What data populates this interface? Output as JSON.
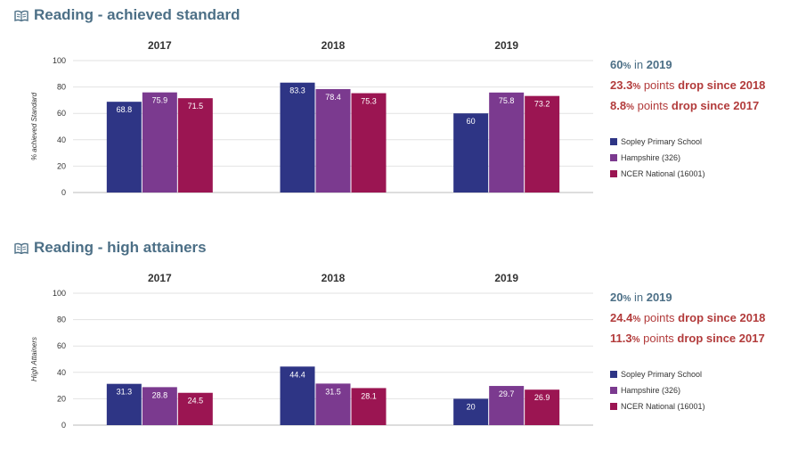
{
  "colors": {
    "title": "#4c6f86",
    "drop": "#b23b3b",
    "series": [
      "#2e3585",
      "#7b3a8f",
      "#9b1552"
    ]
  },
  "legend": [
    {
      "name": "Sopley Primary School",
      "color": "#2e3585"
    },
    {
      "name": "Hampshire (326)",
      "color": "#7b3a8f"
    },
    {
      "name": "NCER National (16001)",
      "color": "#9b1552"
    }
  ],
  "sections": [
    {
      "title": "Reading - achieved standard",
      "icon": "book-icon",
      "stats": {
        "line1": {
          "value": "60",
          "unit": "%",
          "mid": " in ",
          "year": "2019"
        },
        "line2": {
          "value": "23.3",
          "unit": "%",
          "mid": " points ",
          "tail": "drop since 2018"
        },
        "line3": {
          "value": "8.8",
          "unit": "%",
          "mid": " points ",
          "tail": "drop since 2017"
        }
      }
    },
    {
      "title": "Reading - high attainers",
      "icon": "book-icon",
      "stats": {
        "line1": {
          "value": "20",
          "unit": "%",
          "mid": " in ",
          "year": "2019"
        },
        "line2": {
          "value": "24.4",
          "unit": "%",
          "mid": " points ",
          "tail": "drop since 2018"
        },
        "line3": {
          "value": "11.3",
          "unit": "%",
          "mid": " points ",
          "tail": "drop since 2017"
        }
      }
    }
  ],
  "chart_data": [
    {
      "type": "bar",
      "title": "Reading - achieved standard",
      "categories": [
        "2017",
        "2018",
        "2019"
      ],
      "ylabel": "% achieved Standard",
      "ylim": [
        0,
        100
      ],
      "yticks": [
        0,
        20,
        40,
        60,
        80,
        100
      ],
      "grid": true,
      "legend_position": "right",
      "series": [
        {
          "name": "Sopley Primary School",
          "values": [
            68.8,
            83.3,
            60
          ]
        },
        {
          "name": "Hampshire (326)",
          "values": [
            75.9,
            78.4,
            75.8
          ]
        },
        {
          "name": "NCER National (16001)",
          "values": [
            71.5,
            75.3,
            73.2
          ]
        }
      ]
    },
    {
      "type": "bar",
      "title": "Reading - high attainers",
      "categories": [
        "2017",
        "2018",
        "2019"
      ],
      "ylabel": "High Attainers",
      "ylim": [
        0,
        100
      ],
      "yticks": [
        0,
        20,
        40,
        60,
        80,
        100
      ],
      "grid": true,
      "legend_position": "right",
      "series": [
        {
          "name": "Sopley Primary School",
          "values": [
            31.3,
            44.4,
            20
          ]
        },
        {
          "name": "Hampshire (326)",
          "values": [
            28.8,
            31.5,
            29.7
          ]
        },
        {
          "name": "NCER National (16001)",
          "values": [
            24.5,
            28.1,
            26.9
          ]
        }
      ]
    }
  ]
}
